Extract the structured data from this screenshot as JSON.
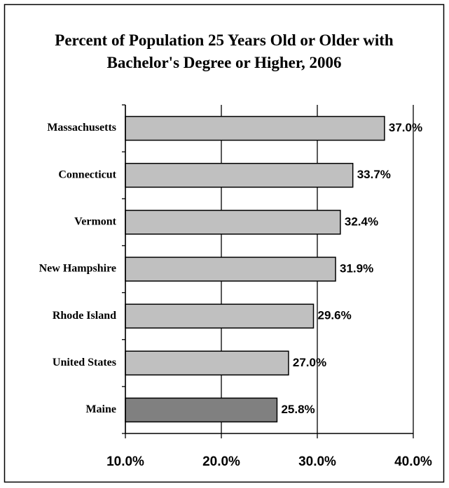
{
  "chart_data": {
    "type": "bar",
    "orientation": "horizontal",
    "title": "Percent of Population 25 Years Old or Older with Bachelor's Degree or Higher, 2006",
    "categories": [
      "Massachusetts",
      "Connecticut",
      "Vermont",
      "New Hampshire",
      "Rhode Island",
      "United States",
      "Maine"
    ],
    "values": [
      37.0,
      33.7,
      32.4,
      31.9,
      29.6,
      27.0,
      25.8
    ],
    "value_labels": [
      "37.0%",
      "33.7%",
      "32.4%",
      "31.9%",
      "29.6%",
      "27.0%",
      "25.8%"
    ],
    "colors": [
      "#c0c0c0",
      "#c0c0c0",
      "#c0c0c0",
      "#c0c0c0",
      "#c0c0c0",
      "#c0c0c0",
      "#808080"
    ],
    "xlim": [
      10,
      40
    ],
    "xticks": [
      {
        "value": 10,
        "label": "10.0%"
      },
      {
        "value": 20,
        "label": "20.0%"
      },
      {
        "value": 30,
        "label": "30.0%"
      },
      {
        "value": 40,
        "label": "40.0%"
      }
    ],
    "grid": true
  }
}
